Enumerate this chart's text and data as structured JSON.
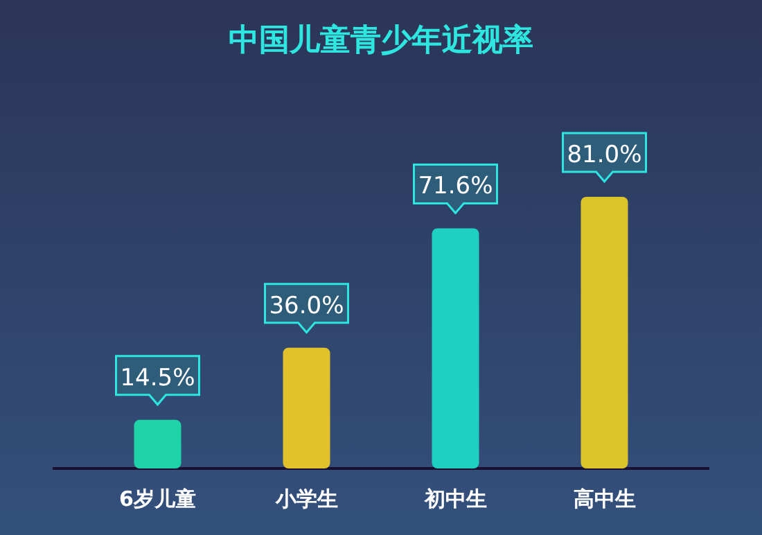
{
  "chart_data": {
    "type": "bar",
    "title": "中国儿童青少年近视率",
    "categories": [
      "6岁儿童",
      "小学生",
      "初中生",
      "高中生"
    ],
    "values": [
      14.5,
      36.0,
      71.6,
      81.0
    ],
    "value_labels": [
      "14.5%",
      "36.0%",
      "71.6%",
      "81.0%"
    ],
    "colors": [
      "#1fd3a8",
      "#e2c22c",
      "#1ed0c2",
      "#dcc32a"
    ],
    "grid": false
  }
}
